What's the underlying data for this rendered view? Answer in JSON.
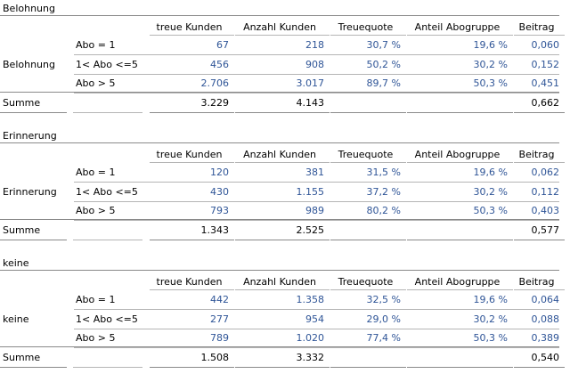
{
  "columns": [
    "treue Kunden",
    "Anzahl Kunden",
    "Treuequote",
    "Anteil Abogruppe",
    "Beitrag"
  ],
  "row_labels": [
    "Abo = 1",
    "1< Abo <=5",
    "Abo > 5"
  ],
  "sum_label": "Summe",
  "sections": [
    {
      "title": "Belohnung",
      "group_label": "Belohnung",
      "rows": [
        [
          "67",
          "218",
          "30,7 %",
          "19,6 %",
          "0,060"
        ],
        [
          "456",
          "908",
          "50,2 %",
          "30,2 %",
          "0,152"
        ],
        [
          "2.706",
          "3.017",
          "89,7 %",
          "50,3 %",
          "0,451"
        ]
      ],
      "sum": [
        "3.229",
        "4.143",
        "",
        "",
        "0,662"
      ]
    },
    {
      "title": "Erinnerung",
      "group_label": "Erinnerung",
      "rows": [
        [
          "120",
          "381",
          "31,5 %",
          "19,6 %",
          "0,062"
        ],
        [
          "430",
          "1.155",
          "37,2 %",
          "30,2 %",
          "0,112"
        ],
        [
          "793",
          "989",
          "80,2 %",
          "50,3 %",
          "0,403"
        ]
      ],
      "sum": [
        "1.343",
        "2.525",
        "",
        "",
        "0,577"
      ]
    },
    {
      "title": "keine",
      "group_label": "keine",
      "rows": [
        [
          "442",
          "1.358",
          "32,5 %",
          "19,6 %",
          "0,064"
        ],
        [
          "277",
          "954",
          "29,0 %",
          "30,2 %",
          "0,088"
        ],
        [
          "789",
          "1.020",
          "77,4 %",
          "50,3 %",
          "0,389"
        ]
      ],
      "sum": [
        "1.508",
        "3.332",
        "",
        "",
        "0,540"
      ]
    }
  ]
}
